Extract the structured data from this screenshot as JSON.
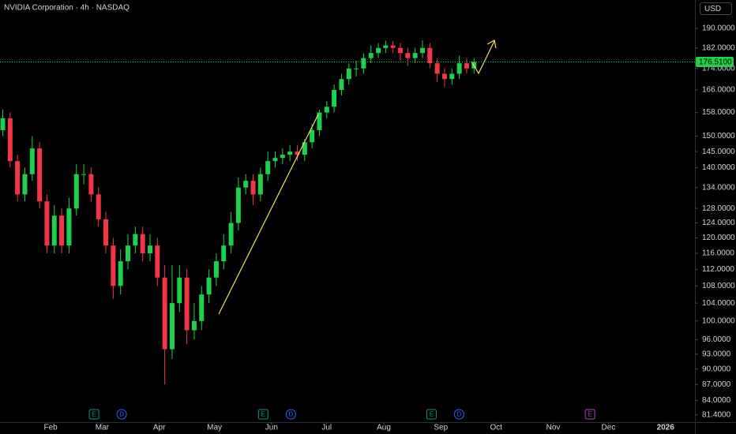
{
  "chart_data": {
    "type": "candlestick",
    "title": "NVIDIA Corporation · 4h · NASDAQ",
    "currency": "USD",
    "log": true,
    "up_color": "#1fd14a",
    "down_color": "#f23645",
    "xlim": [
      -27.5,
      350
    ],
    "ylim": [
      80.1,
      202.2
    ],
    "xticks": [
      {
        "value": 0,
        "label": "Feb"
      },
      {
        "value": 28,
        "label": "Mar"
      },
      {
        "value": 59,
        "label": "Apr"
      },
      {
        "value": 89,
        "label": "May"
      },
      {
        "value": 120,
        "label": "Jun"
      },
      {
        "value": 150,
        "label": "Jul"
      },
      {
        "value": 181,
        "label": "Aug"
      },
      {
        "value": 212,
        "label": "Sep"
      },
      {
        "value": 242,
        "label": "Oct"
      },
      {
        "value": 273,
        "label": "Nov"
      },
      {
        "value": 303,
        "label": "Dec"
      },
      {
        "value": 334,
        "label": "2026"
      }
    ],
    "yticks": [
      {
        "value": 190,
        "label": "190.0000"
      },
      {
        "value": 182,
        "label": "182.0000"
      },
      {
        "value": 174,
        "label": "174.0000"
      },
      {
        "value": 166,
        "label": "166.0000"
      },
      {
        "value": 158,
        "label": "158.0000"
      },
      {
        "value": 150,
        "label": "150.0000"
      },
      {
        "value": 145,
        "label": "145.0000"
      },
      {
        "value": 140,
        "label": "140.0000"
      },
      {
        "value": 134,
        "label": "134.0000"
      },
      {
        "value": 128,
        "label": "128.0000"
      },
      {
        "value": 124,
        "label": "124.0000"
      },
      {
        "value": 120,
        "label": "120.0000"
      },
      {
        "value": 116,
        "label": "116.0000"
      },
      {
        "value": 112,
        "label": "112.0000"
      },
      {
        "value": 108,
        "label": "108.0000"
      },
      {
        "value": 104,
        "label": "104.0000"
      },
      {
        "value": 100,
        "label": "100.0000"
      },
      {
        "value": 96,
        "label": "96.0000"
      },
      {
        "value": 93,
        "label": "93.0000"
      },
      {
        "value": 90,
        "label": "90.0000"
      },
      {
        "value": 87,
        "label": "87.0000"
      },
      {
        "value": 84,
        "label": "84.0000"
      },
      {
        "value": 81.4,
        "label": "81.4000"
      }
    ],
    "price_line": {
      "value": 176.51,
      "label": "176.5100",
      "color": "#1fd14a"
    },
    "events": [
      {
        "x": 23.6,
        "label": "E",
        "color": "#089981"
      },
      {
        "x": 38.6,
        "label": "D",
        "color": "#2962ff"
      },
      {
        "x": 115.5,
        "label": "E",
        "color": "#089981"
      },
      {
        "x": 130.5,
        "label": "D",
        "color": "#2962ff"
      },
      {
        "x": 206.9,
        "label": "E",
        "color": "#089981"
      },
      {
        "x": 221.9,
        "label": "D",
        "color": "#2962ff"
      },
      {
        "x": 293,
        "label": "E",
        "color": "#ab47bc"
      }
    ],
    "x": [
      -26,
      -22,
      -18,
      -14,
      -10,
      -6,
      -2,
      2,
      6,
      10,
      14,
      18,
      22,
      26,
      30,
      34,
      38,
      42,
      46,
      50,
      54,
      58,
      62,
      66,
      70,
      74,
      78,
      82,
      86,
      90,
      94,
      98,
      102,
      106,
      110,
      114,
      118,
      122,
      126,
      130,
      134,
      138,
      142,
      146,
      150,
      154,
      158,
      162,
      166,
      170,
      174,
      178,
      182,
      186,
      190,
      194,
      198,
      202,
      206,
      210,
      214,
      218,
      222,
      226,
      230
    ],
    "open": [
      152,
      156,
      142,
      132,
      138,
      146,
      130,
      118,
      126,
      118,
      128,
      138,
      138,
      132,
      125,
      118,
      108,
      114,
      118,
      121,
      116,
      118,
      110,
      94,
      104,
      110,
      98,
      100,
      106,
      110,
      114,
      118,
      124,
      134,
      136,
      132,
      138,
      142,
      143,
      144,
      145,
      144,
      148,
      152,
      158,
      160,
      166,
      170,
      174,
      174,
      178,
      180,
      182,
      183,
      182,
      180,
      178,
      180,
      182,
      176,
      172,
      170,
      172,
      176,
      174
    ],
    "high": [
      159,
      158,
      144,
      140,
      150,
      148,
      132,
      129,
      128,
      131,
      141,
      141,
      140,
      134,
      127,
      120,
      117,
      121,
      123,
      123,
      121,
      120,
      113,
      113,
      113,
      112,
      104,
      108,
      112,
      116,
      121,
      127,
      137,
      138,
      138,
      140,
      145,
      145,
      146,
      147,
      147,
      149,
      154,
      159,
      162,
      168,
      172,
      176,
      177,
      180,
      183,
      184,
      185,
      185,
      184,
      182,
      182,
      185,
      184,
      178,
      174,
      174,
      179,
      178,
      178
    ],
    "low": [
      150,
      140,
      130,
      130,
      136,
      128,
      116,
      116,
      116,
      116,
      126,
      135,
      130,
      123,
      116,
      105,
      106,
      112,
      116,
      114,
      114,
      108,
      87,
      92,
      102,
      95,
      96,
      98,
      104,
      108,
      112,
      116,
      122,
      132,
      129,
      130,
      136,
      140,
      141,
      142,
      142,
      142,
      146,
      150,
      156,
      158,
      164,
      168,
      171,
      172,
      176,
      178,
      180,
      180,
      177,
      175,
      176,
      178,
      174,
      169,
      167,
      168,
      170,
      172,
      172
    ],
    "close": [
      156,
      142,
      132,
      138,
      146,
      130,
      118,
      126,
      118,
      128,
      138,
      138,
      132,
      125,
      118,
      108,
      114,
      118,
      121,
      116,
      118,
      110,
      94,
      104,
      110,
      98,
      100,
      106,
      110,
      114,
      118,
      124,
      134,
      136,
      132,
      138,
      142,
      143,
      144,
      145,
      144,
      148,
      152,
      158,
      160,
      166,
      170,
      174,
      174,
      178,
      180,
      182,
      183,
      182,
      180,
      178,
      180,
      182,
      176,
      172,
      170,
      172,
      176,
      174,
      176.51
    ]
  }
}
